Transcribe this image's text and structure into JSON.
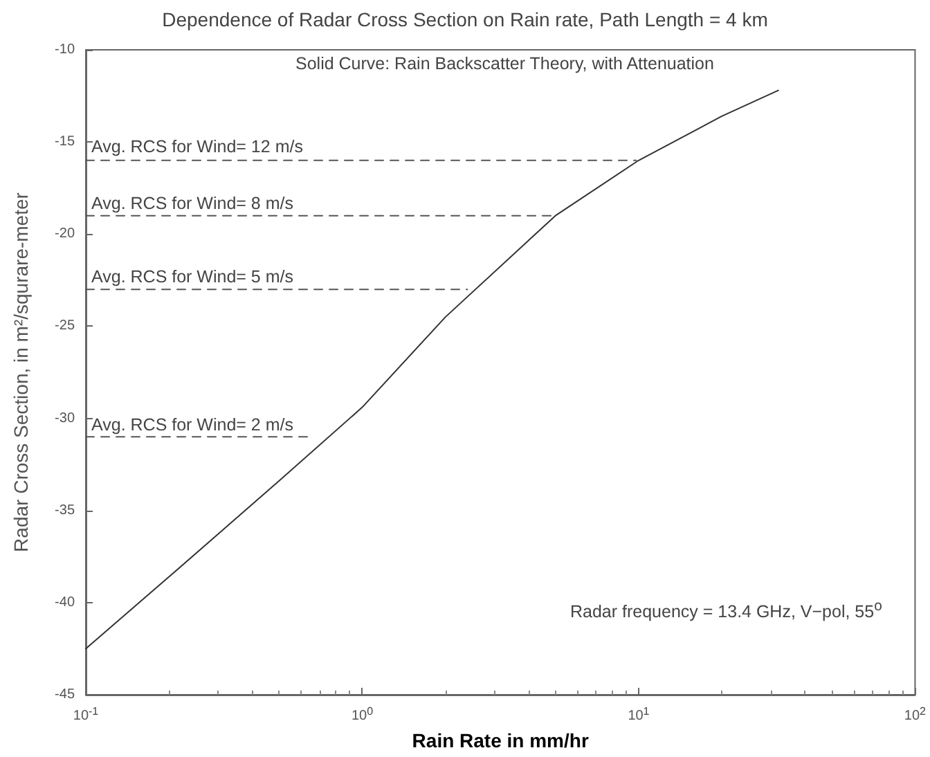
{
  "chart_data": {
    "type": "line",
    "title": "Dependence of Radar Cross Section on Rain rate, Path Length = 4 km",
    "xlabel": "Rain Rate in mm/hr",
    "ylabel": "Radar Cross Section, in m²/squrare-meter",
    "log": "x",
    "grid": false,
    "marker": "none",
    "xlim": [
      0.1,
      100
    ],
    "xticks": [
      {
        "value": 0.1,
        "label": "10$^{-1}$"
      },
      {
        "value": 1,
        "label": "10$^{0}$"
      },
      {
        "value": 10,
        "label": "10$^{1}$"
      },
      {
        "value": 100,
        "label": "10$^{2}$"
      }
    ],
    "ylim": [
      -45,
      -10
    ],
    "yticks": [
      -45,
      -40,
      -35,
      -30,
      -25,
      -20,
      -15,
      -10
    ],
    "series": [
      {
        "color": "#333333",
        "line_style": "solid",
        "x": [
          0.1,
          0.2,
          0.5,
          1,
          2,
          5,
          10,
          20,
          32
        ],
        "values": [
          -42.5,
          -38.6,
          -33.4,
          -29.4,
          -24.5,
          -19,
          -16,
          -13.6,
          -12.2
        ]
      },
      {
        "name": "Avg. RCS for Wind= 12 m/s",
        "color": "#555555",
        "line_style": "dashed",
        "x": [
          0.1,
          9.8
        ],
        "values": [
          -16,
          -16
        ]
      },
      {
        "name": "Avg. RCS for Wind= 8 m/s",
        "color": "#555555",
        "line_style": "dashed",
        "x": [
          0.1,
          4.9
        ],
        "values": [
          -19,
          -19
        ]
      },
      {
        "name": "Avg. RCS for Wind= 5 m/s",
        "color": "#555555",
        "line_style": "dashed",
        "x": [
          0.1,
          2.4
        ],
        "values": [
          -23,
          -23
        ]
      },
      {
        "name": "Avg. RCS for Wind= 2 m/s",
        "color": "#555555",
        "line_style": "dashed",
        "x": [
          0.1,
          0.65
        ],
        "values": [
          -31,
          -31
        ]
      }
    ],
    "annotations": [
      "Solid Curve: Rain Backscatter Theory, with Attenuation",
      "Radar frequency = 13.4 GHz, V−pol, 55$^{o}$"
    ]
  }
}
